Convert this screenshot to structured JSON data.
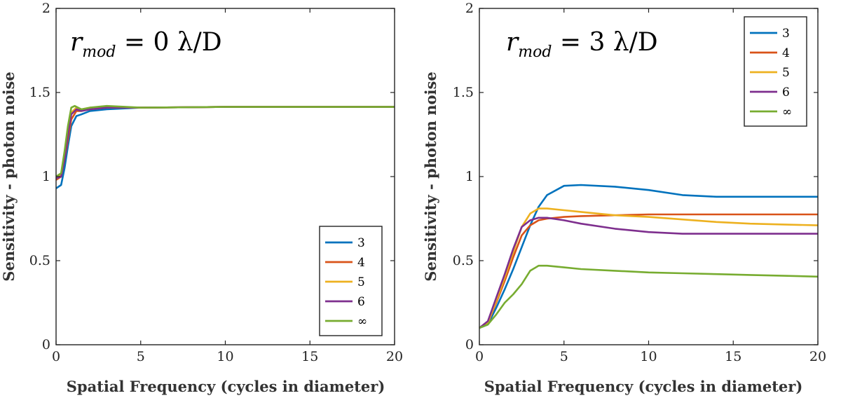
{
  "colors": {
    "3": "#0072BD",
    "4": "#D95319",
    "5": "#EDB120",
    "6": "#7E2F8E",
    "inf": "#77AC30"
  },
  "chart_data": [
    {
      "type": "line",
      "title": "",
      "annotation": {
        "main": "r",
        "sub": "mod",
        "rest": " = 0 λ/D"
      },
      "xlabel": "Spatial Frequency (cycles in diameter)",
      "ylabel": "Sensitivity - photon noise",
      "xlim": [
        0,
        20
      ],
      "ylim": [
        0,
        2
      ],
      "xticks": [
        "0",
        "5",
        "10",
        "15",
        "20"
      ],
      "yticks": [
        "0",
        "0.5",
        "1",
        "1.5",
        "2"
      ],
      "legend_position": "bottom-right",
      "series": [
        {
          "name": "3",
          "color_key": "3",
          "x": [
            0,
            0.3,
            0.5,
            0.7,
            0.9,
            1.2,
            1.5,
            2,
            3,
            5,
            10,
            20
          ],
          "y": [
            0.93,
            0.95,
            1.05,
            1.18,
            1.3,
            1.36,
            1.37,
            1.39,
            1.4,
            1.41,
            1.414,
            1.414
          ]
        },
        {
          "name": "4",
          "color_key": "4",
          "x": [
            0,
            0.3,
            0.5,
            0.7,
            0.9,
            1.2,
            1.5,
            2,
            3,
            5,
            10,
            20
          ],
          "y": [
            0.98,
            1.0,
            1.1,
            1.22,
            1.34,
            1.39,
            1.39,
            1.4,
            1.41,
            1.41,
            1.414,
            1.414
          ]
        },
        {
          "name": "5",
          "color_key": "5",
          "x": [
            0,
            0.3,
            0.5,
            0.7,
            0.9,
            1.2,
            1.5,
            2,
            3,
            5,
            10,
            20
          ],
          "y": [
            1.0,
            1.01,
            1.12,
            1.26,
            1.38,
            1.41,
            1.4,
            1.41,
            1.41,
            1.41,
            1.414,
            1.414
          ]
        },
        {
          "name": "6",
          "color_key": "6",
          "x": [
            0,
            0.3,
            0.5,
            0.7,
            0.9,
            1.2,
            1.5,
            2,
            3,
            5,
            10,
            20
          ],
          "y": [
            0.99,
            1.0,
            1.1,
            1.25,
            1.37,
            1.4,
            1.39,
            1.4,
            1.41,
            1.41,
            1.414,
            1.414
          ]
        },
        {
          "name": "∞",
          "color_key": "inf",
          "x": [
            0,
            0.3,
            0.5,
            0.7,
            0.9,
            1.1,
            1.5,
            2,
            3,
            5,
            10,
            20
          ],
          "y": [
            1.0,
            1.02,
            1.15,
            1.3,
            1.41,
            1.42,
            1.4,
            1.41,
            1.42,
            1.41,
            1.414,
            1.414
          ]
        }
      ]
    },
    {
      "type": "line",
      "title": "",
      "annotation": {
        "main": "r",
        "sub": "mod",
        "rest": " = 3 λ/D"
      },
      "xlabel": "Spatial Frequency (cycles in diameter)",
      "ylabel": "Sensitivity - photon noise",
      "xlim": [
        0,
        20
      ],
      "ylim": [
        0,
        2
      ],
      "xticks": [
        "0",
        "5",
        "10",
        "15",
        "20"
      ],
      "yticks": [
        "0",
        "0.5",
        "1",
        "1.5",
        "2"
      ],
      "legend_position": "top-right",
      "series": [
        {
          "name": "3",
          "color_key": "3",
          "x": [
            0,
            0.5,
            1,
            1.5,
            2,
            2.5,
            3,
            3.5,
            4,
            5,
            6,
            8,
            10,
            12,
            14,
            16,
            18,
            20
          ],
          "y": [
            0.1,
            0.12,
            0.22,
            0.33,
            0.45,
            0.58,
            0.71,
            0.82,
            0.89,
            0.945,
            0.95,
            0.94,
            0.92,
            0.89,
            0.88,
            0.88,
            0.88,
            0.88
          ]
        },
        {
          "name": "4",
          "color_key": "4",
          "x": [
            0,
            0.5,
            1,
            1.5,
            2,
            2.5,
            3,
            3.5,
            4,
            5,
            6,
            8,
            10,
            12,
            14,
            16,
            18,
            20
          ],
          "y": [
            0.1,
            0.13,
            0.25,
            0.38,
            0.52,
            0.65,
            0.71,
            0.74,
            0.75,
            0.76,
            0.765,
            0.77,
            0.775,
            0.775,
            0.775,
            0.775,
            0.775,
            0.775
          ]
        },
        {
          "name": "5",
          "color_key": "5",
          "x": [
            0,
            0.5,
            1,
            1.5,
            2,
            2.5,
            3,
            3.5,
            4,
            5,
            6,
            8,
            10,
            12,
            14,
            16,
            18,
            20
          ],
          "y": [
            0.1,
            0.13,
            0.26,
            0.4,
            0.55,
            0.7,
            0.78,
            0.81,
            0.81,
            0.8,
            0.79,
            0.77,
            0.76,
            0.745,
            0.73,
            0.72,
            0.715,
            0.71
          ]
        },
        {
          "name": "6",
          "color_key": "6",
          "x": [
            0,
            0.5,
            1,
            1.5,
            2,
            2.5,
            3,
            3.5,
            4,
            5,
            6,
            8,
            10,
            12,
            14,
            16,
            18,
            20
          ],
          "y": [
            0.1,
            0.14,
            0.28,
            0.42,
            0.57,
            0.7,
            0.74,
            0.755,
            0.755,
            0.74,
            0.72,
            0.69,
            0.67,
            0.66,
            0.66,
            0.66,
            0.66,
            0.66
          ]
        },
        {
          "name": "∞",
          "color_key": "inf",
          "x": [
            0,
            0.5,
            1,
            1.5,
            2,
            2.5,
            3,
            3.5,
            4,
            5,
            6,
            8,
            10,
            12,
            14,
            16,
            18,
            20
          ],
          "y": [
            0.1,
            0.12,
            0.18,
            0.25,
            0.3,
            0.36,
            0.44,
            0.47,
            0.47,
            0.46,
            0.45,
            0.44,
            0.43,
            0.425,
            0.42,
            0.415,
            0.41,
            0.405
          ]
        }
      ]
    }
  ]
}
